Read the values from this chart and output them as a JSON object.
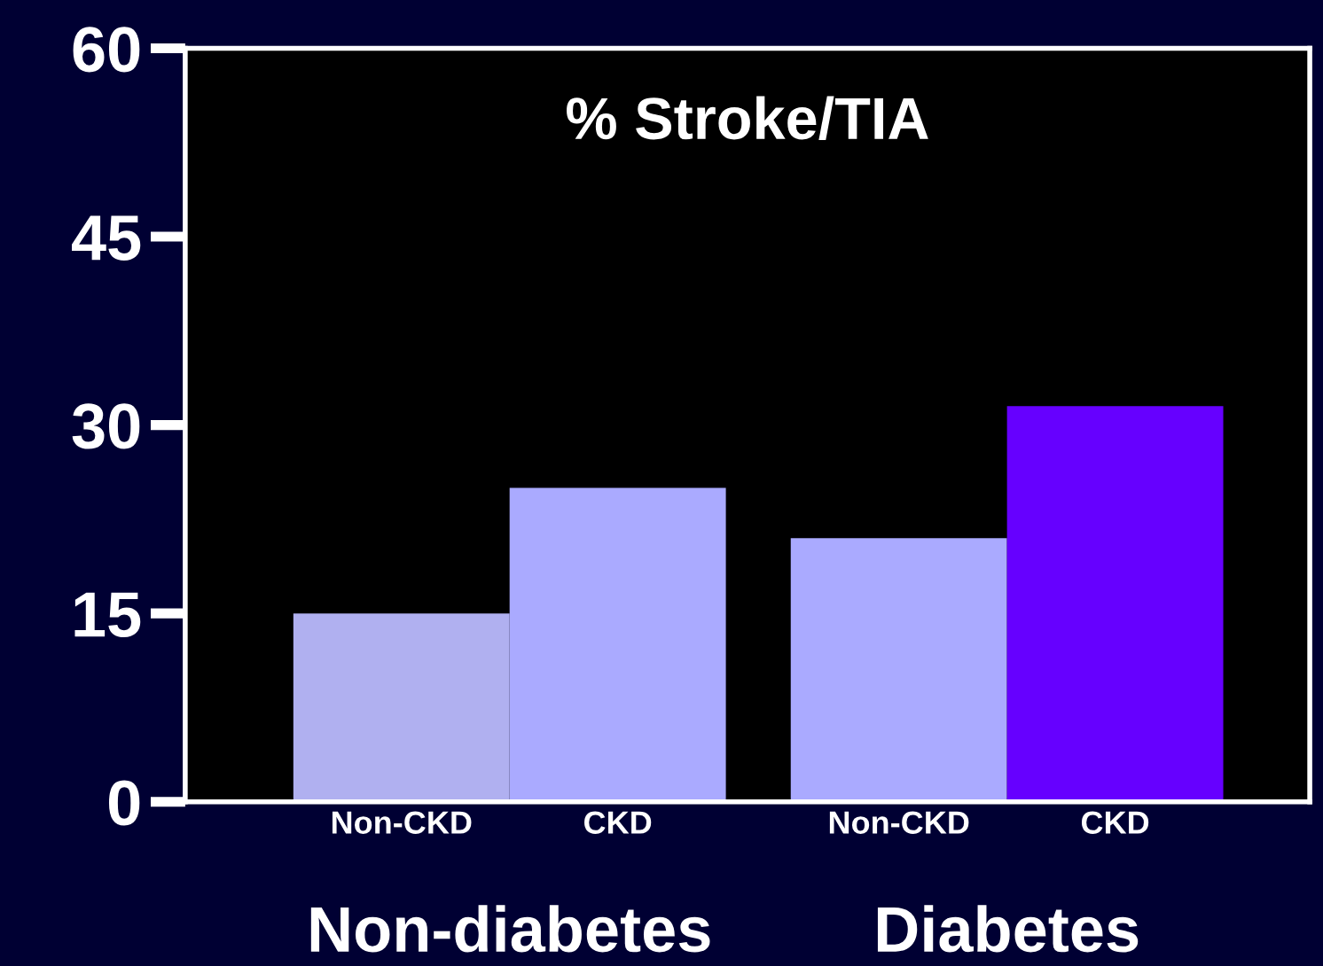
{
  "chart_data": {
    "type": "bar",
    "title": "% Stroke/TIA",
    "categories": [
      "Non-CKD",
      "CKD",
      "Non-CKD",
      "CKD"
    ],
    "values": [
      15,
      25,
      21,
      31.5
    ],
    "colors": [
      "#b0b0f0",
      "#aaaaff",
      "#aaaaff",
      "#6600ff"
    ],
    "ylim": [
      0,
      60
    ],
    "yticks": [
      0,
      15,
      30,
      45,
      60
    ],
    "grid": false,
    "legend": false,
    "annotations": [
      "Non-diabetes",
      "Diabetes"
    ]
  }
}
